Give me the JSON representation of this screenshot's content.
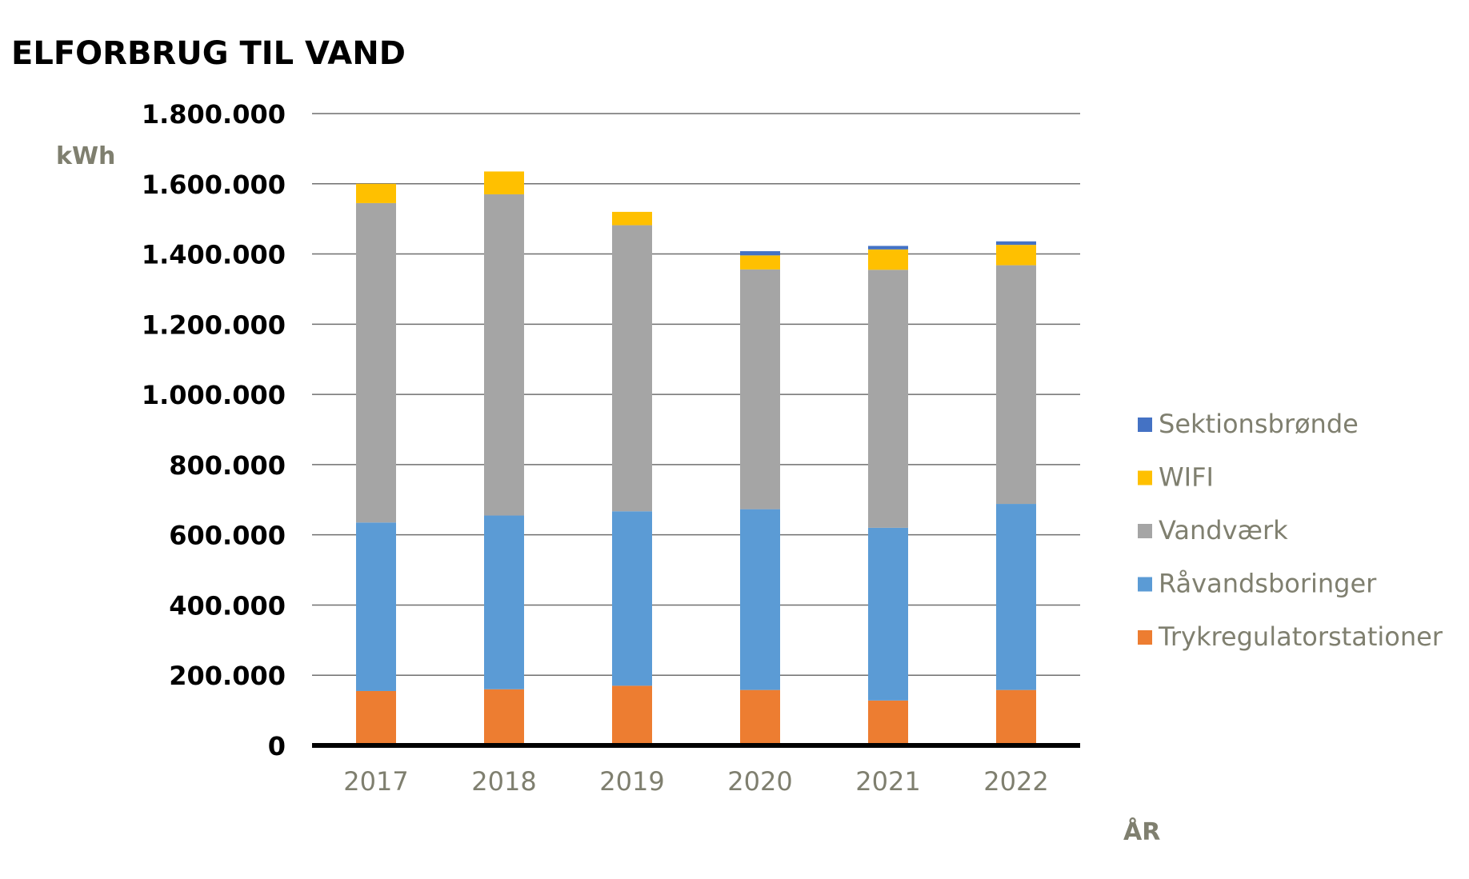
{
  "chart_data": {
    "type": "bar",
    "stacked": true,
    "title": "ELFORBRUG TIL VAND",
    "ylabel": "kWh",
    "xlabel": "ÅR",
    "ylim": [
      0,
      1800000
    ],
    "yticks": [
      0,
      200000,
      400000,
      600000,
      800000,
      1000000,
      1200000,
      1400000,
      1600000,
      1800000
    ],
    "ytick_labels": [
      "0",
      "200.000",
      "400.000",
      "600.000",
      "800.000",
      "1.000.000",
      "1.200.000",
      "1.400.000",
      "1.600.000",
      "1.800.000"
    ],
    "categories": [
      "2017",
      "2018",
      "2019",
      "2020",
      "2021",
      "2022"
    ],
    "grid": true,
    "legend_position": "right",
    "series": [
      {
        "name": "Trykregulatorstationer",
        "color": "#ed7d31",
        "values": [
          155000,
          160000,
          170000,
          158000,
          128000,
          158000
        ]
      },
      {
        "name": "Råvandsboringer",
        "color": "#5b9bd5",
        "values": [
          480000,
          495000,
          497000,
          515000,
          492000,
          530000
        ]
      },
      {
        "name": "Vandværk",
        "color": "#a5a5a5",
        "values": [
          910000,
          915000,
          815000,
          683000,
          735000,
          680000
        ]
      },
      {
        "name": "WIFI",
        "color": "#ffc000",
        "values": [
          55000,
          65000,
          38000,
          40000,
          58000,
          58000
        ]
      },
      {
        "name": "Sektionsbrønde",
        "color": "#4472c4",
        "values": [
          0,
          0,
          0,
          12000,
          10000,
          10000
        ]
      }
    ]
  }
}
